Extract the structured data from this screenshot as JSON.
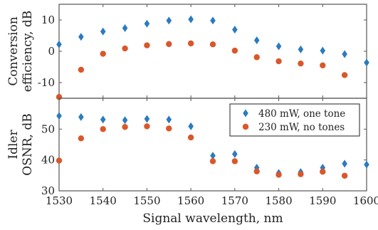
{
  "chart_data": [
    {
      "type": "scatter",
      "ylabel": [
        "Conversion",
        "efficiency, dB"
      ],
      "xlim": [
        1530,
        1600
      ],
      "ylim": [
        -15,
        15
      ],
      "yticks": [
        -10,
        0,
        10
      ],
      "grid": false,
      "series": [
        {
          "name": "480 mW, one tone",
          "marker": "diamond",
          "color": "#2b7bbf",
          "x": [
            1530,
            1535,
            1540,
            1545,
            1550,
            1555,
            1560,
            1565,
            1570,
            1575,
            1580,
            1585,
            1590,
            1595,
            1600
          ],
          "y": [
            2.2,
            4.6,
            6.3,
            7.4,
            8.8,
            9.8,
            10.2,
            9.8,
            6.9,
            3.5,
            1.6,
            0.6,
            0.2,
            -0.9,
            -3.6
          ]
        },
        {
          "name": "230 mW, no tones",
          "marker": "circle",
          "color": "#d9572a",
          "x": [
            1530,
            1535,
            1540,
            1545,
            1550,
            1555,
            1560,
            1565,
            1570,
            1575,
            1580,
            1585,
            1590,
            1595
          ],
          "y": [
            -14.6,
            -5.9,
            -0.8,
            0.9,
            1.9,
            2.3,
            2.5,
            2.2,
            0.2,
            -1.9,
            -3.2,
            -3.9,
            -4.5,
            -7.6
          ]
        }
      ]
    },
    {
      "type": "scatter",
      "xlabel": "Signal wavelength, nm",
      "ylabel": [
        "Idler",
        "OSNR, dB"
      ],
      "xlim": [
        1530,
        1600
      ],
      "ylim": [
        30,
        60
      ],
      "yticks": [
        30,
        40,
        50
      ],
      "xticks": [
        1530,
        1540,
        1550,
        1560,
        1570,
        1580,
        1590,
        1600
      ],
      "grid": false,
      "legend": "top-right",
      "series": [
        {
          "name": "480 mW, one tone",
          "marker": "diamond",
          "color": "#2b7bbf",
          "x": [
            1530,
            1535,
            1540,
            1545,
            1550,
            1555,
            1560,
            1565,
            1570,
            1575,
            1580,
            1585,
            1590,
            1595,
            1600
          ],
          "y": [
            54.3,
            53.9,
            53.1,
            52.9,
            53.3,
            53.1,
            50.9,
            41.4,
            41.9,
            37.5,
            35.8,
            36.1,
            37.5,
            38.8,
            38.5
          ]
        },
        {
          "name": "230 mW, no tones",
          "marker": "circle",
          "color": "#d9572a",
          "x": [
            1530,
            1535,
            1540,
            1545,
            1550,
            1555,
            1560,
            1565,
            1570,
            1575,
            1580,
            1585,
            1590,
            1595
          ],
          "y": [
            39.8,
            47.0,
            50.0,
            50.7,
            50.9,
            50.2,
            47.3,
            39.6,
            39.6,
            36.3,
            35.2,
            35.4,
            36.2,
            34.9
          ]
        }
      ]
    }
  ]
}
